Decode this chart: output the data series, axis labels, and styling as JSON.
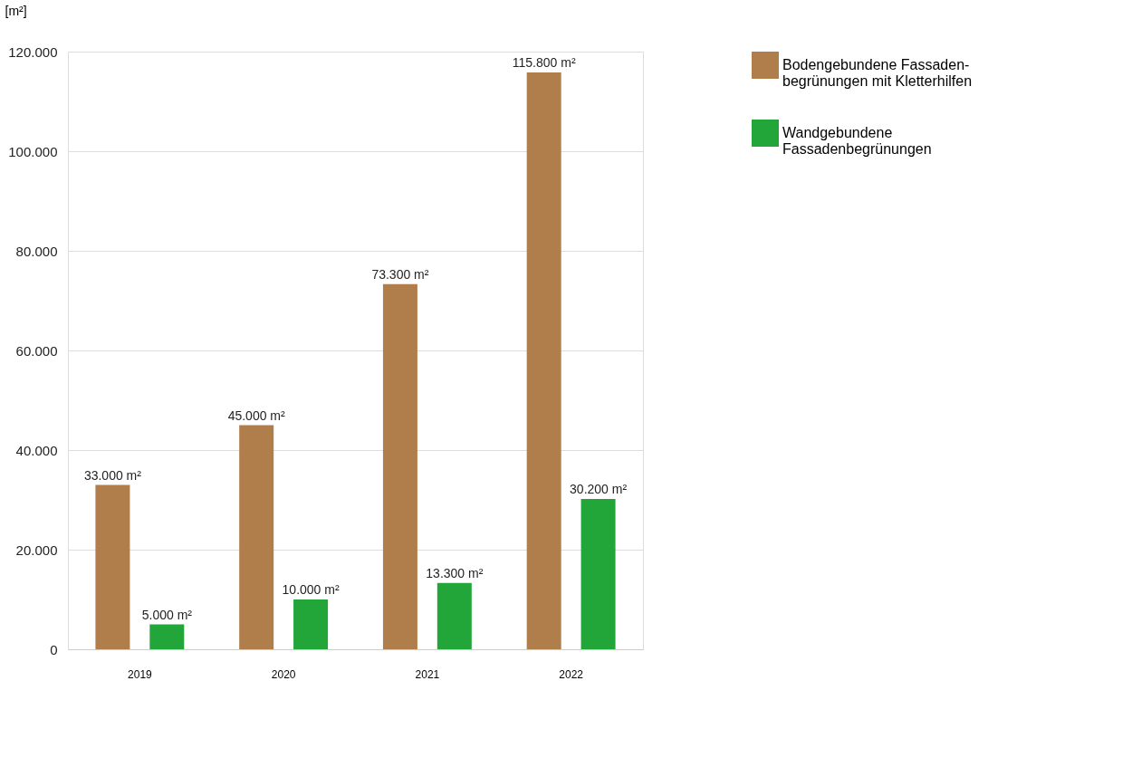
{
  "chart_data": {
    "type": "bar",
    "ylabel": "[m²]",
    "categories": [
      "2019",
      "2020",
      "2021",
      "2022"
    ],
    "series": [
      {
        "name": "Bodengebundene Fassaden-begrünungen mit Kletterhilfen",
        "color": "#b07e4b",
        "values": [
          33000,
          45000,
          73300,
          115800
        ],
        "value_labels": [
          "33.000 m²",
          "45.000 m²",
          "73.300 m²",
          "115.800 m²"
        ]
      },
      {
        "name": "Wandgebundene Fassadenbegrünungen",
        "color": "#22a63a",
        "values": [
          5000,
          10000,
          13300,
          30200
        ],
        "value_labels": [
          "5.000 m²",
          "10.000 m²",
          "13.300 m²",
          "30.200 m²"
        ]
      }
    ],
    "ylim": [
      0,
      120000
    ],
    "yticks": [
      {
        "value": 0,
        "label": "0"
      },
      {
        "value": 20000,
        "label": "20.000"
      },
      {
        "value": 40000,
        "label": "40.000"
      },
      {
        "value": 60000,
        "label": "60.000"
      },
      {
        "value": 80000,
        "label": "80.000"
      },
      {
        "value": 100000,
        "label": "100.000"
      },
      {
        "value": 120000,
        "label": "120.000"
      }
    ],
    "grid": "y",
    "legend": "right"
  }
}
